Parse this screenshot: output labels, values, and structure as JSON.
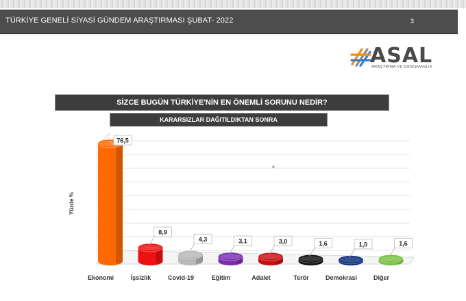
{
  "header": {
    "title": "TÜRKİYE GENELİ SİYASİ GÜNDEM ARAŞTIRMASI ŞUBAT- 2022",
    "page_number": "3"
  },
  "logo": {
    "name": "ASAL",
    "tagline": "ARAŞTIRMA VE DANIŞMANLIK"
  },
  "colors": {
    "header_bg": "#4d4d4d",
    "box_bg": "#3d3d3d"
  },
  "chart_data": {
    "type": "bar",
    "title": "SİZCE BUGÜN TÜRKİYE'NİN EN ÖNEMLİ SORUNU NEDİR?",
    "subtitle": "KARARSIZLAR DAĞITILDIKTAN SONRA",
    "ylabel": "Yüzde %",
    "xlabel": "",
    "categories": [
      "Ekonomi",
      "İşsizlik",
      "Covid-19",
      "Eğitim",
      "Adalet",
      "Terör",
      "Demokrasi",
      "Diğer"
    ],
    "values": [
      76.5,
      8.9,
      4.3,
      3.1,
      3.0,
      1.6,
      1.0,
      1.6
    ],
    "value_labels": [
      "76,5",
      "8,9",
      "4,3",
      "3,1",
      "3,0",
      "1,6",
      "1,0",
      "1,6"
    ],
    "colors": [
      "#ff6a00",
      "#ee1111",
      "#b8b8b8",
      "#7a2fb0",
      "#c81010",
      "#111111",
      "#0a2a78",
      "#7ac142"
    ],
    "grid": true,
    "legend": "none"
  }
}
